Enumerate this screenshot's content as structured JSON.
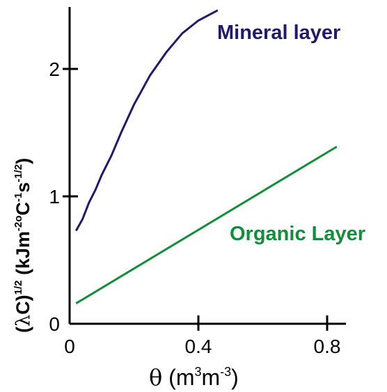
{
  "chart_data": {
    "type": "line",
    "xlabel": {
      "symbol": "θ",
      "open": " (m",
      "sup1": "3",
      "mid": "m",
      "sup2": "-3",
      "close": ")"
    },
    "ylabel": {
      "lambda": "λ",
      "a": "C)",
      "sup1": "1/2",
      "b": " (kJm",
      "sup2": "-2o",
      "c": "C",
      "sup3": "-1",
      "d": "s",
      "sup4": "-1/2",
      "e": ")"
    },
    "xlim": [
      0,
      0.85
    ],
    "ylim": [
      0,
      2.5
    ],
    "x_ticks": [
      0,
      0.4,
      0.8
    ],
    "x_tick_labels": [
      "0",
      "0.4",
      "0.8"
    ],
    "y_ticks": [
      0,
      1,
      2
    ],
    "y_tick_labels": [
      "0",
      "1",
      "2"
    ],
    "grid": false,
    "series": [
      {
        "name": "Mineral layer",
        "color": "#1f1a6e",
        "points": [
          [
            0.02,
            0.73
          ],
          [
            0.04,
            0.82
          ],
          [
            0.06,
            0.95
          ],
          [
            0.08,
            1.05
          ],
          [
            0.1,
            1.17
          ],
          [
            0.13,
            1.32
          ],
          [
            0.16,
            1.5
          ],
          [
            0.2,
            1.72
          ],
          [
            0.25,
            1.95
          ],
          [
            0.3,
            2.13
          ],
          [
            0.35,
            2.28
          ],
          [
            0.4,
            2.38
          ],
          [
            0.46,
            2.46
          ]
        ]
      },
      {
        "name": "Organic Layer",
        "color": "#0f8f3a",
        "points": [
          [
            0.02,
            0.16
          ],
          [
            0.83,
            1.39
          ]
        ]
      }
    ]
  }
}
